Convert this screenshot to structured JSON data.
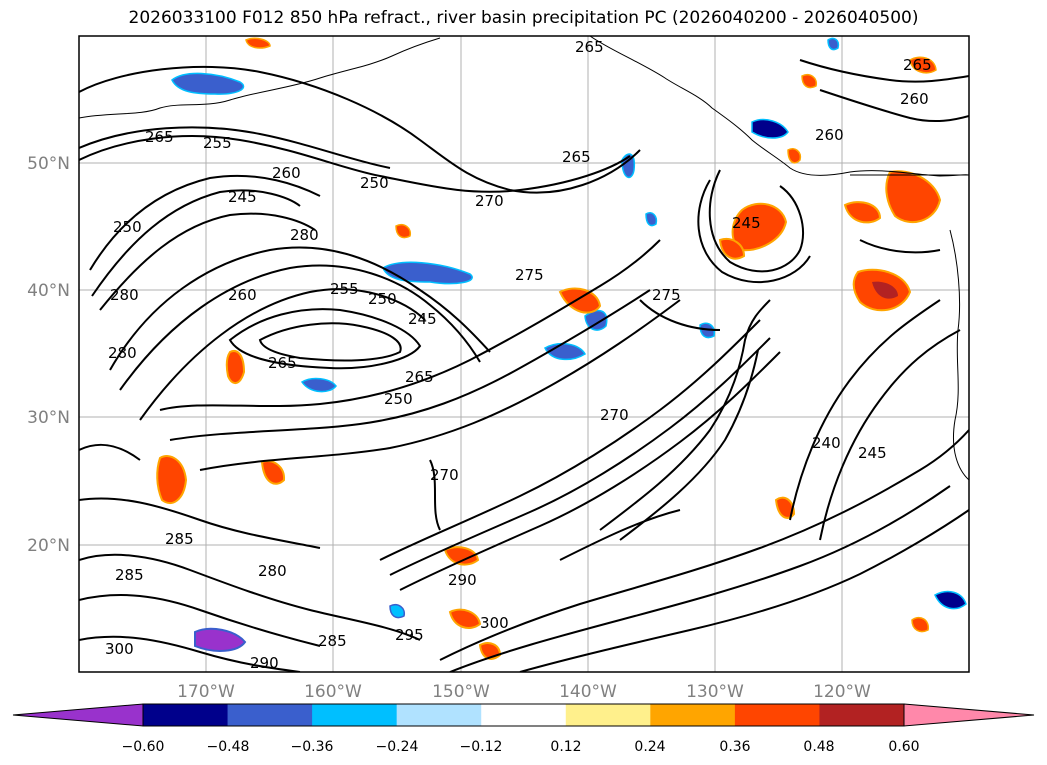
{
  "title": "2026033100 F012 850 hPa refract., river basin precipitation PC (2026040200 - 2026040500)",
  "map": {
    "lat_labels": [
      "50°N",
      "40°N",
      "30°N",
      "20°N"
    ],
    "lon_labels": [
      "170°W",
      "160°W",
      "150°W",
      "140°W",
      "130°W",
      "120°W"
    ],
    "contour_labels": [
      "265",
      "255",
      "260",
      "250",
      "270",
      "275",
      "280",
      "245",
      "240",
      "285",
      "290",
      "295",
      "300"
    ]
  },
  "colorbar": {
    "colors": [
      "#9932cc",
      "#00008b",
      "#3a5fcd",
      "#00bfff",
      "#b0e2ff",
      "#ffffff",
      "#fff08c",
      "#ffa500",
      "#ff4500",
      "#b22222",
      "#ff88aa"
    ],
    "ticks": [
      "−0.60",
      "−0.48",
      "−0.36",
      "−0.24",
      "−0.12",
      "0.12",
      "0.24",
      "0.36",
      "0.48",
      "0.60"
    ]
  }
}
